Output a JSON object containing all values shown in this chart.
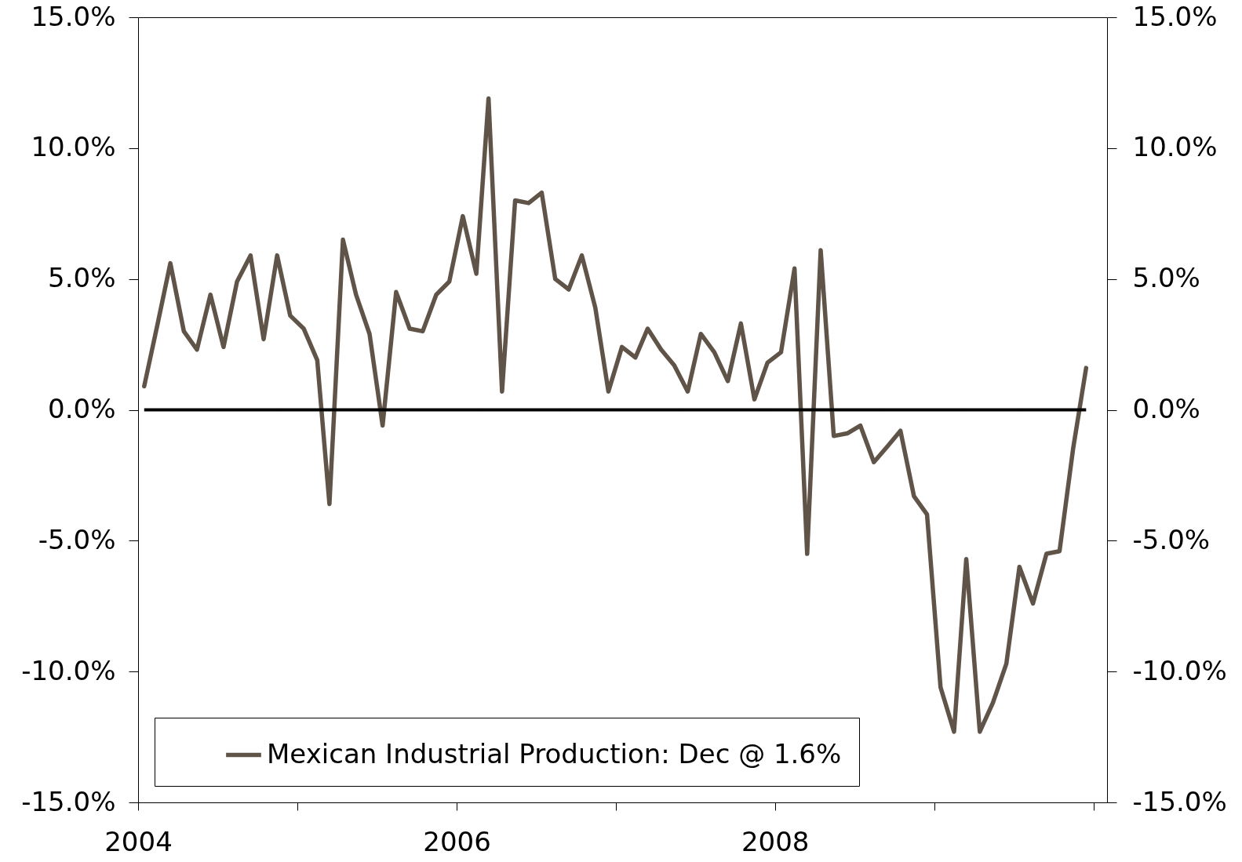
{
  "chart_data": {
    "type": "line",
    "x": [
      "2004-01-15",
      "2004-02-15",
      "2004-03-15",
      "2004-04-15",
      "2004-05-15",
      "2004-06-15",
      "2004-07-15",
      "2004-08-15",
      "2004-09-15",
      "2004-10-15",
      "2004-11-15",
      "2004-12-15",
      "2005-01-15",
      "2005-02-15",
      "2005-03-15",
      "2005-04-15",
      "2005-05-15",
      "2005-06-15",
      "2005-07-15",
      "2005-08-15",
      "2005-09-15",
      "2005-10-15",
      "2005-11-15",
      "2005-12-15",
      "2006-01-15",
      "2006-02-15",
      "2006-03-15",
      "2006-04-15",
      "2006-05-15",
      "2006-06-15",
      "2006-07-15",
      "2006-08-15",
      "2006-09-15",
      "2006-10-15",
      "2006-11-15",
      "2006-12-15",
      "2007-01-15",
      "2007-02-15",
      "2007-03-15",
      "2007-04-15",
      "2007-05-15",
      "2007-06-15",
      "2007-07-15",
      "2007-08-15",
      "2007-09-15",
      "2007-10-15",
      "2007-11-15",
      "2007-12-15",
      "2008-01-15",
      "2008-02-15",
      "2008-03-15",
      "2008-04-15",
      "2008-05-15",
      "2008-06-15",
      "2008-07-15",
      "2008-08-15",
      "2008-09-15",
      "2008-10-15",
      "2008-11-15",
      "2008-12-15",
      "2009-01-15",
      "2009-02-15",
      "2009-03-15",
      "2009-04-15",
      "2009-05-15",
      "2009-06-15",
      "2009-07-15",
      "2009-08-15",
      "2009-09-15",
      "2009-10-15",
      "2009-11-15",
      "2009-12-15"
    ],
    "series": [
      {
        "name": "Mexican Industrial Production: Dec @ 1.6%",
        "color": "#605448",
        "values": [
          0.9,
          3.3,
          5.6,
          3.0,
          2.3,
          4.4,
          2.4,
          4.9,
          5.9,
          2.7,
          5.9,
          3.6,
          3.1,
          1.9,
          -3.6,
          6.5,
          4.4,
          2.9,
          -0.6,
          4.5,
          3.1,
          3.0,
          4.4,
          4.9,
          7.4,
          5.2,
          11.9,
          0.7,
          8.0,
          7.9,
          8.3,
          5.0,
          4.6,
          5.9,
          3.9,
          0.7,
          2.4,
          2.0,
          3.1,
          2.3,
          1.7,
          0.7,
          2.9,
          2.2,
          1.1,
          3.3,
          0.4,
          1.8,
          2.2,
          5.4,
          -5.5,
          6.1,
          -1.0,
          -0.9,
          -0.6,
          -2.0,
          -1.4,
          -0.8,
          -3.3,
          -4.0,
          -10.6,
          -12.3,
          -5.7,
          -12.3,
          -11.2,
          -9.7,
          -6.0,
          -7.4,
          -5.5,
          -5.4,
          -1.5,
          1.6
        ]
      }
    ],
    "xlim": [
      "2004-01",
      "2010-02"
    ],
    "xticks": [
      "2004",
      {
        "value": "2005",
        "label": null
      },
      "2006",
      {
        "value": "2007",
        "label": null
      },
      "2008",
      {
        "value": "2009",
        "label": null
      },
      {
        "value": "2010",
        "label": null
      }
    ],
    "ylim": [
      -15,
      15
    ],
    "yticks": [
      {
        "value": -15,
        "label": "-15.0%"
      },
      {
        "value": -10,
        "label": "-10.0%"
      },
      {
        "value": -5,
        "label": "-5.0%"
      },
      {
        "value": 0,
        "label": "0.0%"
      },
      {
        "value": 5,
        "label": "5.0%"
      },
      {
        "value": 10,
        "label": "10.0%"
      },
      {
        "value": 15,
        "label": "15.0%"
      }
    ],
    "y2lim": [
      -15,
      15
    ],
    "y2ticks": [
      {
        "value": -15,
        "label": "-15.0%"
      },
      {
        "value": -10,
        "label": "-10.0%"
      },
      {
        "value": -5,
        "label": "-5.0%"
      },
      {
        "value": 0,
        "label": "0.0%"
      },
      {
        "value": 5,
        "label": "5.0%"
      },
      {
        "value": 10,
        "label": "10.0%"
      },
      {
        "value": 15,
        "label": "15.0%"
      }
    ],
    "ref_lines": [
      {
        "axis": "y",
        "value": 0,
        "color": "#000000"
      }
    ],
    "grid": false,
    "legend": "bottom"
  }
}
